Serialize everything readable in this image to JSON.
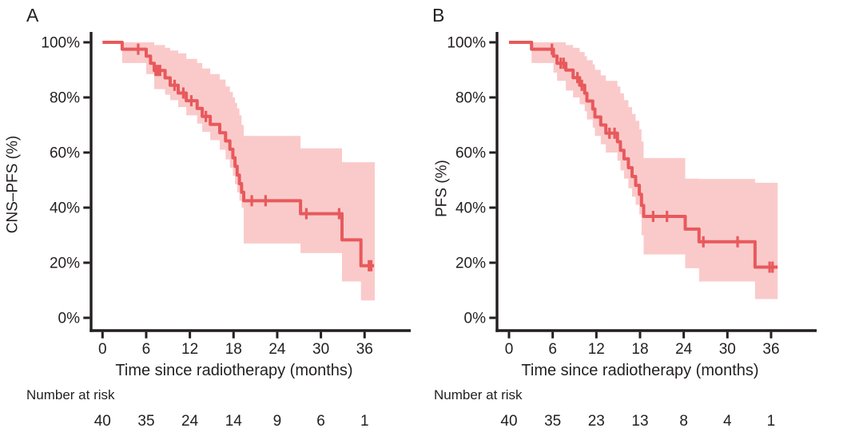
{
  "figure": {
    "panels": [
      {
        "label": "A",
        "y_title": "CNS–PFS (%)",
        "x_title": "Time since radiotherapy (months)",
        "risk_label": "Number at risk"
      },
      {
        "label": "B",
        "y_title": "PFS (%)",
        "x_title": "Time since radiotherapy (months)",
        "risk_label": "Number at risk"
      }
    ],
    "colors": {
      "curve": "#e8595c",
      "band": "#facaca",
      "axis": "#231f20",
      "text": "#231f20"
    }
  },
  "chart_data": [
    {
      "type": "line",
      "subtype": "kaplan-meier-step",
      "panel": "A",
      "ylabel": "CNS–PFS (%)",
      "xlabel": "Time since radiotherapy (months)",
      "x_ticks": [
        0,
        6,
        12,
        18,
        24,
        30,
        36
      ],
      "x_tick_labels": [
        "0",
        "6",
        "12",
        "18",
        "24",
        "30",
        "36"
      ],
      "y_ticks": [
        0,
        20,
        40,
        60,
        80,
        100
      ],
      "y_tick_labels": [
        "0%",
        "20%",
        "40%",
        "60%",
        "80%",
        "100%"
      ],
      "xlim": [
        -1.5,
        42
      ],
      "ylim": [
        0,
        104
      ],
      "grid": false,
      "legend": "none",
      "curve_color": "#e8595c",
      "band_color": "#facaca",
      "steps": [
        [
          0,
          100
        ],
        [
          2.7,
          97.5
        ],
        [
          6.0,
          95.0
        ],
        [
          6.6,
          92.4
        ],
        [
          7.1,
          89.8
        ],
        [
          8.6,
          87.1
        ],
        [
          9.3,
          84.4
        ],
        [
          10.4,
          81.6
        ],
        [
          11.5,
          78.8
        ],
        [
          13.0,
          76.0
        ],
        [
          13.7,
          73.1
        ],
        [
          14.8,
          70.2
        ],
        [
          16.1,
          67.2
        ],
        [
          16.9,
          64.2
        ],
        [
          17.5,
          61.2
        ],
        [
          17.9,
          58.1
        ],
        [
          18.2,
          55.0
        ],
        [
          18.5,
          51.8
        ],
        [
          18.8,
          48.7
        ],
        [
          19.1,
          45.6
        ],
        [
          19.4,
          42.5
        ],
        [
          27.2,
          37.8
        ],
        [
          32.9,
          28.3
        ],
        [
          35.5,
          18.9
        ]
      ],
      "end_time": 37.3,
      "censors": [
        [
          4.9,
          97.5
        ],
        [
          7.3,
          89.8
        ],
        [
          7.6,
          89.8
        ],
        [
          7.9,
          89.8
        ],
        [
          9.9,
          84.4
        ],
        [
          11.1,
          81.6
        ],
        [
          12.2,
          78.8
        ],
        [
          14.2,
          73.1
        ],
        [
          20.5,
          42.5
        ],
        [
          22.4,
          42.5
        ],
        [
          28.0,
          37.8
        ],
        [
          32.5,
          37.8
        ],
        [
          36.6,
          18.9
        ],
        [
          36.9,
          18.9
        ]
      ],
      "band": [
        [
          2.7,
          100,
          92.5
        ],
        [
          6.0,
          100,
          88.5
        ],
        [
          7.1,
          99,
          83
        ],
        [
          8.6,
          98,
          81
        ],
        [
          9.3,
          97,
          79
        ],
        [
          10.4,
          96,
          76.5
        ],
        [
          11.5,
          94,
          73.5
        ],
        [
          13.0,
          92.5,
          70.5
        ],
        [
          13.7,
          90.5,
          67.5
        ],
        [
          14.8,
          88.5,
          64.5
        ],
        [
          16.1,
          86.5,
          61
        ],
        [
          16.9,
          84,
          57.5
        ],
        [
          17.5,
          82,
          54.5
        ],
        [
          17.9,
          80,
          51.5
        ],
        [
          18.2,
          78,
          48.5
        ],
        [
          18.5,
          76,
          45.5
        ],
        [
          18.8,
          73.5,
          42.5
        ],
        [
          19.1,
          70,
          40
        ],
        [
          19.4,
          66,
          27
        ],
        [
          27.2,
          61.5,
          23.5
        ],
        [
          32.9,
          56.5,
          13.2
        ],
        [
          35.5,
          56.5,
          6.3
        ]
      ],
      "band_end": 37.4,
      "number_at_risk": {
        "times": [
          0,
          6,
          12,
          18,
          24,
          30,
          36
        ],
        "counts": [
          40,
          35,
          24,
          14,
          9,
          6,
          1
        ]
      }
    },
    {
      "type": "line",
      "subtype": "kaplan-meier-step",
      "panel": "B",
      "ylabel": "PFS (%)",
      "xlabel": "Time since radiotherapy (months)",
      "x_ticks": [
        0,
        6,
        12,
        18,
        24,
        30,
        36
      ],
      "x_tick_labels": [
        "0",
        "6",
        "12",
        "18",
        "24",
        "30",
        "36"
      ],
      "y_ticks": [
        0,
        20,
        40,
        60,
        80,
        100
      ],
      "y_tick_labels": [
        "0%",
        "20%",
        "40%",
        "60%",
        "80%",
        "100%"
      ],
      "xlim": [
        -1.5,
        42
      ],
      "ylim": [
        0,
        104
      ],
      "grid": false,
      "legend": "none",
      "curve_color": "#e8595c",
      "band_color": "#facaca",
      "steps": [
        [
          0,
          100
        ],
        [
          3.1,
          97.5
        ],
        [
          6.1,
          95.0
        ],
        [
          6.6,
          92.4
        ],
        [
          7.8,
          89.9
        ],
        [
          8.8,
          87.2
        ],
        [
          9.7,
          84.4
        ],
        [
          10.4,
          81.5
        ],
        [
          10.7,
          78.7
        ],
        [
          11.5,
          75.8
        ],
        [
          11.8,
          72.9
        ],
        [
          12.6,
          70.0
        ],
        [
          13.3,
          67.0
        ],
        [
          14.9,
          63.9
        ],
        [
          15.3,
          60.8
        ],
        [
          15.8,
          57.7
        ],
        [
          16.4,
          54.5
        ],
        [
          16.9,
          51.3
        ],
        [
          17.4,
          48.1
        ],
        [
          17.9,
          44.8
        ],
        [
          18.2,
          40.8
        ],
        [
          18.5,
          36.8
        ],
        [
          24.2,
          32.2
        ],
        [
          26.1,
          27.6
        ],
        [
          33.8,
          18.4
        ]
      ],
      "end_time": 36.9,
      "censors": [
        [
          5.9,
          97.5
        ],
        [
          7.1,
          92.4
        ],
        [
          7.5,
          92.4
        ],
        [
          9.4,
          87.2
        ],
        [
          10.0,
          84.4
        ],
        [
          13.8,
          67.0
        ],
        [
          14.5,
          67.0
        ],
        [
          19.8,
          36.8
        ],
        [
          21.7,
          36.8
        ],
        [
          26.7,
          27.6
        ],
        [
          31.4,
          27.6
        ],
        [
          35.8,
          18.4
        ],
        [
          36.2,
          18.4
        ]
      ],
      "band": [
        [
          3.1,
          100,
          92.5
        ],
        [
          6.1,
          100,
          89
        ],
        [
          6.6,
          100,
          86
        ],
        [
          7.8,
          99,
          82.5
        ],
        [
          8.8,
          98,
          80
        ],
        [
          9.7,
          96.5,
          77.5
        ],
        [
          10.4,
          95,
          75
        ],
        [
          10.7,
          93.5,
          72
        ],
        [
          11.5,
          92,
          69
        ],
        [
          11.8,
          90,
          66
        ],
        [
          12.6,
          88,
          63
        ],
        [
          13.3,
          86,
          60
        ],
        [
          14.9,
          84,
          57
        ],
        [
          15.3,
          81.5,
          53.5
        ],
        [
          15.8,
          79,
          50.5
        ],
        [
          16.4,
          76.5,
          47
        ],
        [
          16.9,
          74,
          44
        ],
        [
          17.4,
          71.5,
          41
        ],
        [
          17.9,
          68.5,
          37.5
        ],
        [
          18.2,
          64,
          30
        ],
        [
          18.5,
          58,
          23
        ],
        [
          24.2,
          50.5,
          18
        ],
        [
          26.1,
          50.4,
          13.2
        ],
        [
          33.8,
          49,
          6.8
        ]
      ],
      "band_end": 36.9,
      "number_at_risk": {
        "times": [
          0,
          6,
          12,
          18,
          24,
          30,
          36
        ],
        "counts": [
          40,
          35,
          23,
          13,
          8,
          4,
          1
        ]
      }
    }
  ]
}
